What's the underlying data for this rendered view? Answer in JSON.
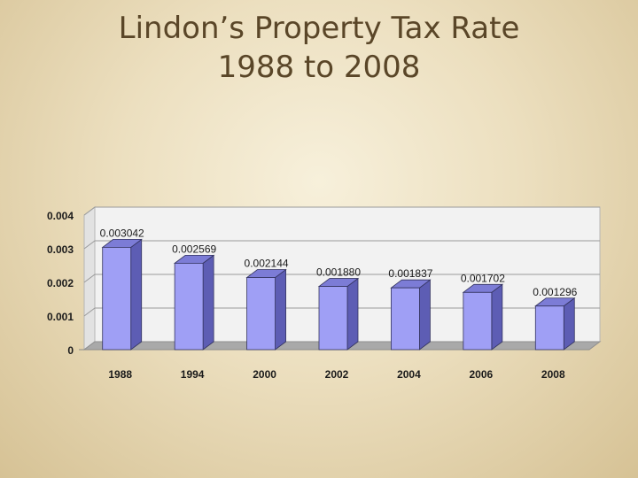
{
  "title_lines": [
    "Lindon’s Property Tax Rate",
    "1988 to 2008"
  ],
  "chart_data": {
    "type": "bar",
    "title": "Lindon’s Property Tax Rate 1988 to 2008",
    "categories": [
      "1988",
      "1994",
      "2000",
      "2002",
      "2004",
      "2006",
      "2008"
    ],
    "values": [
      0.003042,
      0.002569,
      0.002144,
      0.00188,
      0.001837,
      0.001702,
      0.001296
    ],
    "data_labels": [
      "0.003042",
      "0.002569",
      "0.002144",
      "0.001880",
      "0.001837",
      "0.001702",
      "0.001296"
    ],
    "y_ticks": [
      0,
      0.001,
      0.002,
      0.003,
      0.004
    ],
    "y_tick_labels": [
      "0",
      "0.001",
      "0.002",
      "0.003",
      "0.004"
    ],
    "ylim": [
      0,
      0.004
    ],
    "xlabel": "",
    "ylabel": "",
    "grid": true,
    "legend": false,
    "style": "3d-column",
    "colors": {
      "bar_front": "#9f9ff5",
      "bar_side": "#5d5db4",
      "bar_top": "#7c7cd6",
      "plot_wall": "#f2f2f2",
      "floor": "#a9a9a9",
      "gridline": "#9a9a9a",
      "text": "#1a1a1a"
    }
  }
}
